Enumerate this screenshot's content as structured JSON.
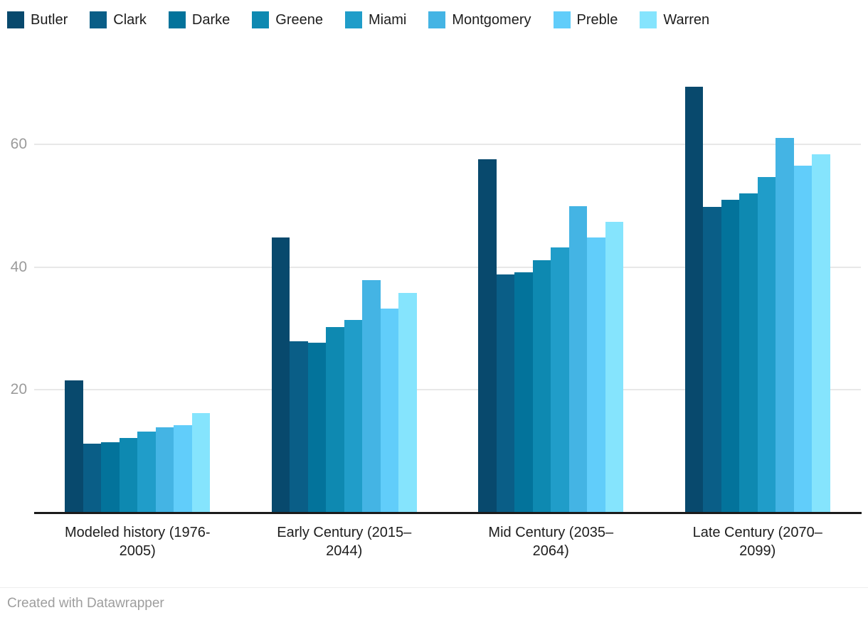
{
  "footer": {
    "attribution": "Created with Datawrapper"
  },
  "chart_data": {
    "type": "bar",
    "title": "",
    "xlabel": "",
    "ylabel": "",
    "grid": true,
    "legend_position": "top",
    "ylim": [
      0,
      75
    ],
    "yticks": [
      20,
      40,
      60
    ],
    "categories": [
      "Modeled history (1976-2005)",
      "Early Century (2015–2044)",
      "Mid Century (2035–2064)",
      "Late Century (2070–2099)"
    ],
    "category_label_lines": [
      [
        "Modeled history (1976-",
        "2005)"
      ],
      [
        "Early Century (2015–",
        "2044)"
      ],
      [
        "Mid Century (2035–",
        "2064)"
      ],
      [
        "Late Century (2070–",
        "2099)"
      ]
    ],
    "series": [
      {
        "name": "Butler",
        "color": "#08496d",
        "values": [
          21.5,
          44.8,
          57.6,
          69.4
        ]
      },
      {
        "name": "Clark",
        "color": "#0a5e87",
        "values": [
          11.2,
          27.9,
          38.8,
          49.8
        ]
      },
      {
        "name": "Darke",
        "color": "#03739b",
        "values": [
          11.5,
          27.7,
          39.1,
          51.0
        ]
      },
      {
        "name": "Greene",
        "color": "#0e89b1",
        "values": [
          12.2,
          30.2,
          41.1,
          52.0
        ]
      },
      {
        "name": "Miami",
        "color": "#209dc9",
        "values": [
          13.2,
          31.4,
          43.2,
          54.7
        ]
      },
      {
        "name": "Montgomery",
        "color": "#44b4e4",
        "values": [
          13.9,
          37.9,
          49.9,
          61.0
        ]
      },
      {
        "name": "Preble",
        "color": "#61cdfa",
        "values": [
          14.3,
          33.2,
          44.8,
          56.5
        ]
      },
      {
        "name": "Warren",
        "color": "#85e4fd",
        "values": [
          16.2,
          35.8,
          47.4,
          58.4
        ]
      }
    ]
  }
}
